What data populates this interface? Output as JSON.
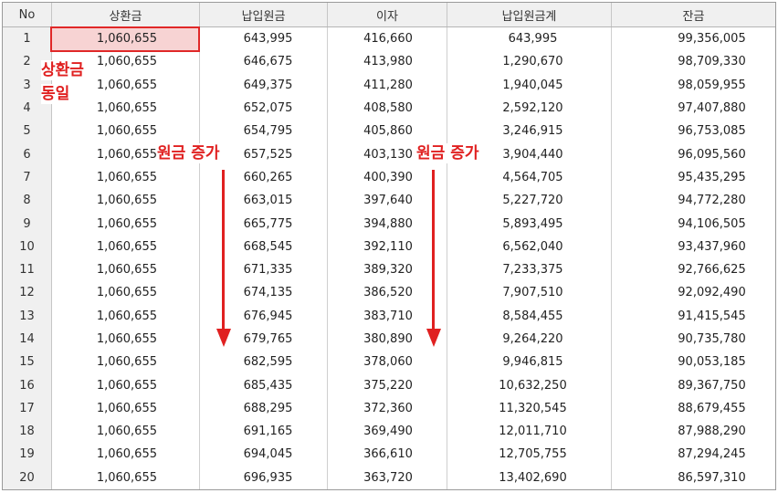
{
  "table": {
    "headers": [
      "No",
      "상환금",
      "납입원금",
      "이자",
      "납입원금계",
      "잔금"
    ],
    "rows": [
      [
        "1",
        "1,060,655",
        "643,995",
        "416,660",
        "643,995",
        "99,356,005"
      ],
      [
        "2",
        "1,060,655",
        "646,675",
        "413,980",
        "1,290,670",
        "98,709,330"
      ],
      [
        "3",
        "1,060,655",
        "649,375",
        "411,280",
        "1,940,045",
        "98,059,955"
      ],
      [
        "4",
        "1,060,655",
        "652,075",
        "408,580",
        "2,592,120",
        "97,407,880"
      ],
      [
        "5",
        "1,060,655",
        "654,795",
        "405,860",
        "3,246,915",
        "96,753,085"
      ],
      [
        "6",
        "1,060,655",
        "657,525",
        "403,130",
        "3,904,440",
        "96,095,560"
      ],
      [
        "7",
        "1,060,655",
        "660,265",
        "400,390",
        "4,564,705",
        "95,435,295"
      ],
      [
        "8",
        "1,060,655",
        "663,015",
        "397,640",
        "5,227,720",
        "94,772,280"
      ],
      [
        "9",
        "1,060,655",
        "665,775",
        "394,880",
        "5,893,495",
        "94,106,505"
      ],
      [
        "10",
        "1,060,655",
        "668,545",
        "392,110",
        "6,562,040",
        "93,437,960"
      ],
      [
        "11",
        "1,060,655",
        "671,335",
        "389,320",
        "7,233,375",
        "92,766,625"
      ],
      [
        "12",
        "1,060,655",
        "674,135",
        "386,520",
        "7,907,510",
        "92,092,490"
      ],
      [
        "13",
        "1,060,655",
        "676,945",
        "383,710",
        "8,584,455",
        "91,415,545"
      ],
      [
        "14",
        "1,060,655",
        "679,765",
        "380,890",
        "9,264,220",
        "90,735,780"
      ],
      [
        "15",
        "1,060,655",
        "682,595",
        "378,060",
        "9,946,815",
        "90,053,185"
      ],
      [
        "16",
        "1,060,655",
        "685,435",
        "375,220",
        "10,632,250",
        "89,367,750"
      ],
      [
        "17",
        "1,060,655",
        "688,295",
        "372,360",
        "11,320,545",
        "88,679,455"
      ],
      [
        "18",
        "1,060,655",
        "691,165",
        "369,490",
        "12,011,710",
        "87,988,290"
      ],
      [
        "19",
        "1,060,655",
        "694,045",
        "366,610",
        "12,705,755",
        "87,294,245"
      ],
      [
        "20",
        "1,060,655",
        "696,935",
        "363,720",
        "13,402,690",
        "86,597,310"
      ]
    ]
  },
  "annotations": {
    "payment_same_line1": "상환금",
    "payment_same_line2": "동일",
    "principal_increase_1": "원금 증가",
    "principal_increase_2": "원금 증가"
  },
  "colors": {
    "annotation_red": "#e02020",
    "highlight_fill": "#f7d3d3"
  }
}
